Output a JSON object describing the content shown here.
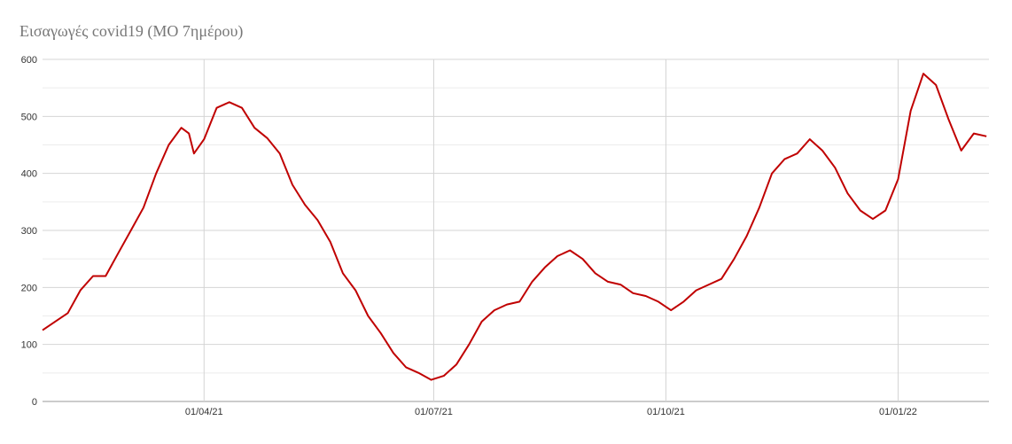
{
  "chart_data": {
    "type": "line",
    "title": "Εισαγωγές covid19 (ΜΟ 7ημέρου)",
    "x": [
      "2021-01-27",
      "2021-02-01",
      "2021-02-06",
      "2021-02-11",
      "2021-02-16",
      "2021-02-21",
      "2021-02-26",
      "2021-03-03",
      "2021-03-08",
      "2021-03-13",
      "2021-03-18",
      "2021-03-23",
      "2021-03-26",
      "2021-03-28",
      "2021-04-01",
      "2021-04-06",
      "2021-04-11",
      "2021-04-16",
      "2021-04-21",
      "2021-04-26",
      "2021-05-01",
      "2021-05-06",
      "2021-05-11",
      "2021-05-16",
      "2021-05-21",
      "2021-05-26",
      "2021-05-31",
      "2021-06-05",
      "2021-06-10",
      "2021-06-15",
      "2021-06-20",
      "2021-06-25",
      "2021-06-30",
      "2021-07-05",
      "2021-07-10",
      "2021-07-15",
      "2021-07-20",
      "2021-07-25",
      "2021-07-30",
      "2021-08-04",
      "2021-08-09",
      "2021-08-14",
      "2021-08-19",
      "2021-08-24",
      "2021-08-29",
      "2021-09-03",
      "2021-09-08",
      "2021-09-13",
      "2021-09-18",
      "2021-09-23",
      "2021-09-28",
      "2021-10-03",
      "2021-10-08",
      "2021-10-13",
      "2021-10-18",
      "2021-10-23",
      "2021-10-28",
      "2021-11-02",
      "2021-11-07",
      "2021-11-12",
      "2021-11-17",
      "2021-11-22",
      "2021-11-27",
      "2021-12-02",
      "2021-12-07",
      "2021-12-12",
      "2021-12-17",
      "2021-12-22",
      "2021-12-27",
      "2022-01-01",
      "2022-01-06",
      "2022-01-11",
      "2022-01-16",
      "2022-01-21",
      "2022-01-26",
      "2022-01-31",
      "2022-02-05"
    ],
    "series": [
      {
        "name": "Εισαγωγές",
        "color": "#c00000",
        "values": [
          125,
          140,
          155,
          195,
          220,
          220,
          260,
          300,
          340,
          400,
          450,
          480,
          470,
          435,
          460,
          515,
          525,
          515,
          480,
          462,
          435,
          380,
          345,
          318,
          280,
          225,
          195,
          150,
          120,
          85,
          60,
          50,
          38,
          45,
          65,
          100,
          140,
          160,
          170,
          175,
          210,
          235,
          255,
          265,
          250,
          225,
          210,
          205,
          190,
          185,
          175,
          160,
          175,
          195,
          205,
          215,
          250,
          290,
          340,
          400,
          425,
          435,
          460,
          440,
          410,
          365,
          335,
          320,
          335,
          390,
          510,
          575,
          555,
          495,
          440,
          470,
          465
        ]
      }
    ],
    "xlim": [
      "2021-01-27",
      "2022-02-06"
    ],
    "xticks": [
      {
        "value": "2021-04-01",
        "label": "01/04/21"
      },
      {
        "value": "2021-07-01",
        "label": "01/07/21"
      },
      {
        "value": "2021-10-01",
        "label": "01/10/21"
      },
      {
        "value": "2022-01-01",
        "label": "01/01/22"
      }
    ],
    "ylim": [
      0,
      600
    ],
    "yticks": [
      0,
      100,
      200,
      300,
      400,
      500,
      600
    ],
    "y_minor_ticks": [
      50,
      150,
      250,
      350,
      450,
      550
    ],
    "grid": true
  }
}
